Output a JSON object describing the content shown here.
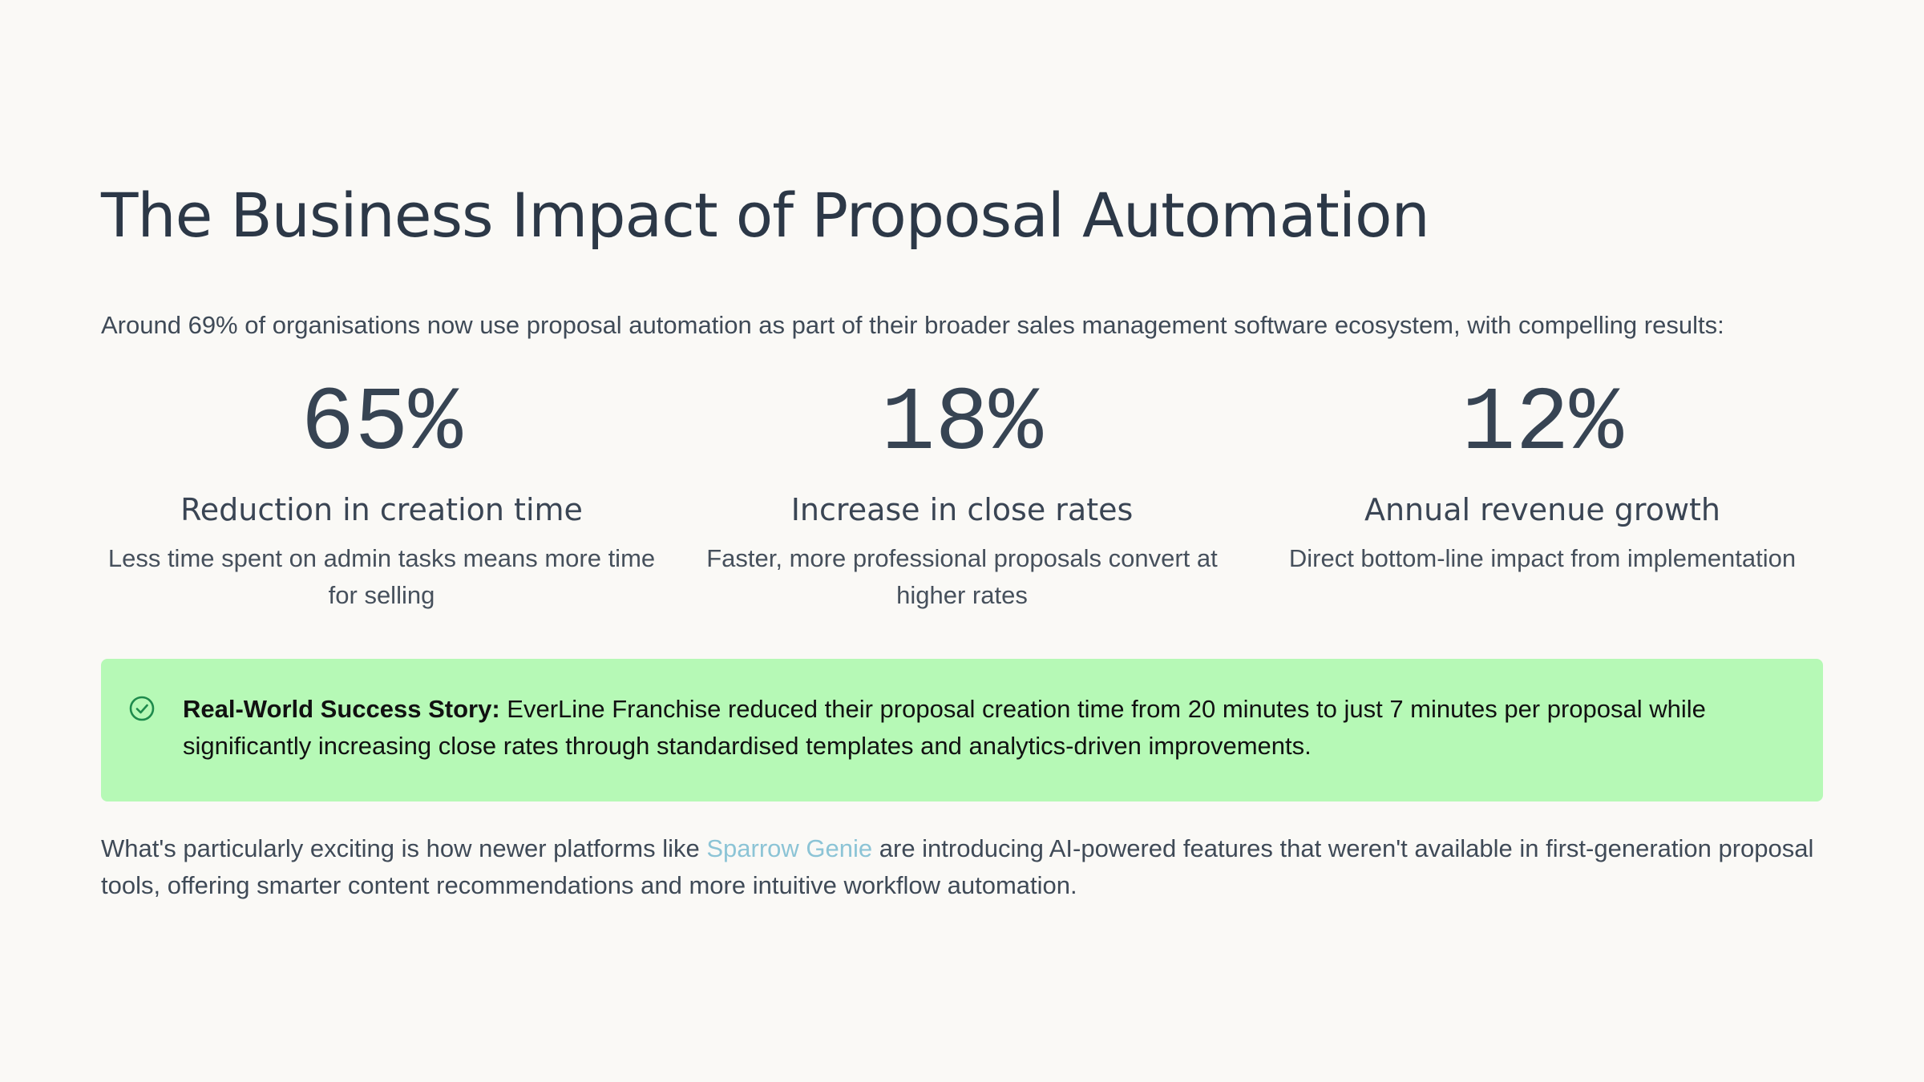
{
  "heading": "The Business Impact of Proposal Automation",
  "intro": "Around 69% of organisations now use proposal automation as part of their broader sales management software ecosystem, with compelling results:",
  "stats": [
    {
      "value": "65%",
      "label": "Reduction in creation time",
      "description": "Less time spent on admin tasks means more time for selling"
    },
    {
      "value": "18%",
      "label": "Increase in close rates",
      "description": "Faster, more professional proposals convert at higher rates"
    },
    {
      "value": "12%",
      "label": "Annual revenue growth",
      "description": "Direct bottom-line impact from implementation"
    }
  ],
  "callout": {
    "icon": "check-circle-icon",
    "title": "Real-World Success Story:",
    "text": " EverLine Franchise reduced their proposal creation time from 20 minutes to just 7 minutes per proposal while significantly increasing close rates through standardised templates and analytics-driven improvements.",
    "background": "#b6f9b6"
  },
  "outro": {
    "before": "What's particularly exciting is how newer platforms like ",
    "link": "Sparrow Genie",
    "after": " are introducing AI-powered features that weren't available in first-generation proposal tools, offering smarter content recommendations and more intuitive workflow automation."
  },
  "colors": {
    "background": "#faf9f6",
    "heading": "#2c3847",
    "link": "#8cc4d6",
    "icon": "#1e8a4c"
  }
}
